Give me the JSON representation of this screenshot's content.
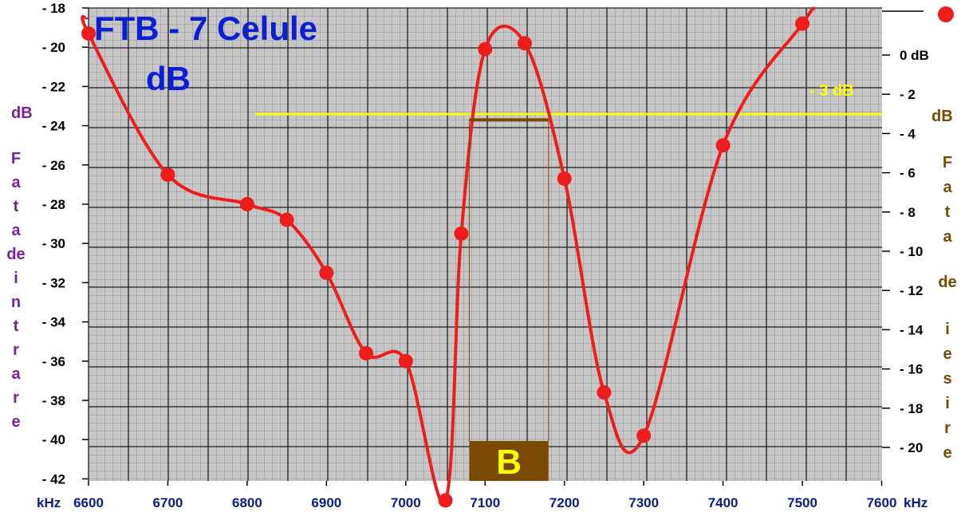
{
  "chart_data": {
    "type": "line",
    "title_line1": "FTB - 7 Celule",
    "title_line2": "dB",
    "x_unit": "kHz",
    "x_ticks": [
      6600,
      6700,
      6800,
      6900,
      7000,
      7100,
      7200,
      7300,
      7400,
      7500,
      7600
    ],
    "xlim": [
      6600,
      7600
    ],
    "y_left": {
      "unit": "dB",
      "label_chars": [
        "F",
        "a",
        "t",
        "a",
        "de",
        "i",
        "n",
        "t",
        "r",
        "a",
        "r",
        "e"
      ],
      "ticks": [
        "- 18",
        "- 20",
        "- 22",
        "- 24",
        "- 26",
        "- 28",
        "- 30",
        "- 32",
        "- 34",
        "- 36",
        "- 38",
        "- 40",
        "- 42"
      ],
      "tick_values": [
        -18,
        -20,
        -22,
        -24,
        -26,
        -28,
        -30,
        -32,
        -34,
        -36,
        -38,
        -40,
        -42
      ],
      "ylim": [
        -42,
        -18
      ]
    },
    "y_right": {
      "unit": "dB",
      "label_chars": [
        "F",
        "a",
        "t",
        "a",
        "de",
        "i",
        "e",
        "s",
        "i",
        "r",
        "e"
      ],
      "ticks": [
        "0 dB",
        "- 2",
        "- 4",
        "- 6",
        "- 8",
        "- 10",
        "- 12",
        "- 14",
        "- 16",
        "- 18",
        "- 20"
      ],
      "tick_values": [
        0,
        -2,
        -4,
        -6,
        -8,
        -10,
        -12,
        -14,
        -16,
        -18,
        -20
      ]
    },
    "series": [
      {
        "color": "#ee1c1c",
        "x": [
          6600,
          6700,
          6800,
          6850,
          6900,
          6950,
          7000,
          7050,
          7070,
          7100,
          7150,
          7200,
          7250,
          7300,
          7400,
          7500
        ],
        "y": [
          -19.3,
          -26.5,
          -28.0,
          -28.8,
          -31.5,
          -35.6,
          -36.0,
          -43.1,
          -29.5,
          -20.1,
          -19.8,
          -26.7,
          -37.6,
          -39.8,
          -25.0,
          -18.8
        ]
      }
    ],
    "reference_line": {
      "label": "- 3 dB",
      "y": -23.0,
      "x_start": 6810,
      "color": "#ffff00"
    },
    "bandwidth": {
      "label": "B",
      "x_start": 7080,
      "x_end": 7180,
      "y_top": -23.3,
      "color": "#7a4a05",
      "label_color": "#ffff00"
    },
    "colors": {
      "title": "#0b1ed6",
      "left_axis_label": "#7b1fa2",
      "right_axis_label": "#7a4a05",
      "ticks": "#000000",
      "x_ticks": "#0b1a8c",
      "grid_background": "#c4c4c4"
    }
  }
}
